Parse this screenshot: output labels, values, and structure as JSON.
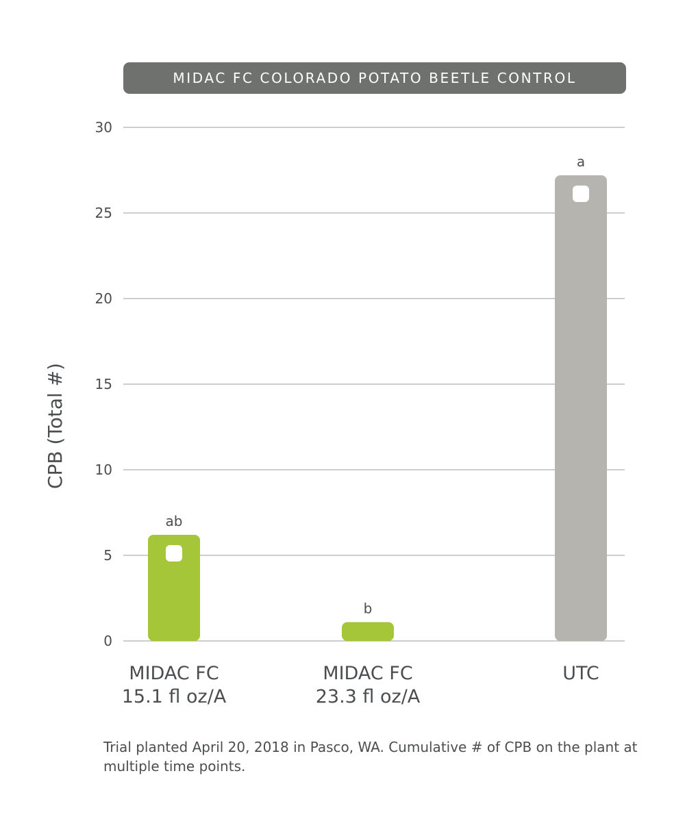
{
  "chart_data": {
    "type": "bar",
    "title": "MIDAC FC COLORADO POTATO BEETLE CONTROL",
    "ylabel": "CPB (Total #)",
    "xlabel": "",
    "ylim": [
      0,
      30
    ],
    "yticks": [
      0,
      5,
      10,
      15,
      20,
      25,
      30
    ],
    "grid": true,
    "categories": [
      {
        "line1": "MIDAC FC",
        "line2": "15.1 fl oz/A"
      },
      {
        "line1": "MIDAC FC",
        "line2": "23.3 fl oz/A"
      },
      {
        "line1": "UTC",
        "line2": ""
      }
    ],
    "values": [
      6.2,
      1.1,
      27.2
    ],
    "significance_letters": [
      "ab",
      "b",
      "a"
    ],
    "bar_colors": [
      "#a6c63a",
      "#a6c63a",
      "#b5b4af"
    ]
  },
  "caption": "Trial planted April 20, 2018 in Pasco, WA. Cumulative # of CPB on the plant at multiple time points."
}
